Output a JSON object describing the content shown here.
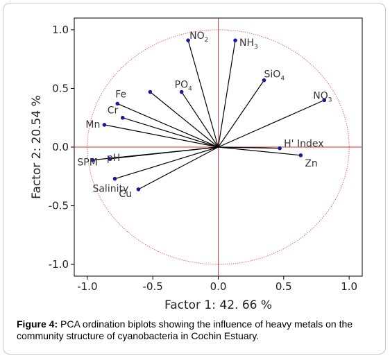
{
  "chart_data": {
    "type": "biplot",
    "xlabel": "Factor 1: 42. 66 %",
    "ylabel": "Factor 2: 20.54 %",
    "xlim": [
      -1.1,
      1.1
    ],
    "ylim": [
      -1.1,
      1.1
    ],
    "xticks": [
      "-1.0",
      "-0.5",
      "0.0",
      "0.5",
      "1.0"
    ],
    "yticks": [
      "1.0",
      "0.5",
      "0.0",
      "-0.5",
      "-1.0"
    ],
    "xtick_values": [
      -1.0,
      -0.5,
      0.0,
      0.5,
      1.0
    ],
    "ytick_values": [
      1.0,
      0.5,
      0.0,
      -0.5,
      -1.0
    ],
    "circle_radius": 1.0,
    "vectors": [
      {
        "label": "NO",
        "sub": "2",
        "x": -0.23,
        "y": 0.91
      },
      {
        "label": "NH",
        "sub": "3",
        "x": 0.13,
        "y": 0.91
      },
      {
        "label": "SiO",
        "sub": "4",
        "x": 0.35,
        "y": 0.57
      },
      {
        "label": "NO",
        "sub": "3",
        "x": 0.81,
        "y": 0.4
      },
      {
        "label": "PO",
        "sub": "4",
        "x": -0.28,
        "y": 0.47
      },
      {
        "label": "Fe",
        "sub": "",
        "x": -0.77,
        "y": 0.37
      },
      {
        "label": "Cr",
        "sub": "",
        "x": -0.73,
        "y": 0.25
      },
      {
        "label": "Mn",
        "sub": "",
        "x": -0.87,
        "y": 0.19
      },
      {
        "label": "SPM",
        "sub": "",
        "x": -0.96,
        "y": -0.11
      },
      {
        "label": "pH",
        "sub": "",
        "x": -0.83,
        "y": -0.1
      },
      {
        "label": "Salinity",
        "sub": "",
        "x": -0.79,
        "y": -0.27
      },
      {
        "label": "Cu",
        "sub": "",
        "x": -0.61,
        "y": -0.36
      },
      {
        "label": "H' Index",
        "sub": "",
        "x": 0.47,
        "y": -0.01
      },
      {
        "label": "Zn",
        "sub": "",
        "x": 0.63,
        "y": -0.07
      },
      {
        "label": "",
        "sub": "",
        "x": -0.52,
        "y": 0.47
      }
    ]
  },
  "caption": {
    "label": "Figure 4:",
    "text": " PCA ordination biplots showing the influence of heavy metals on the community structure of cyanobacteria in Cochin Estuary."
  },
  "colors": {
    "circle": "#e06060",
    "axis": "#d03030",
    "vector": "#000000",
    "point": "#1a1aa0"
  }
}
